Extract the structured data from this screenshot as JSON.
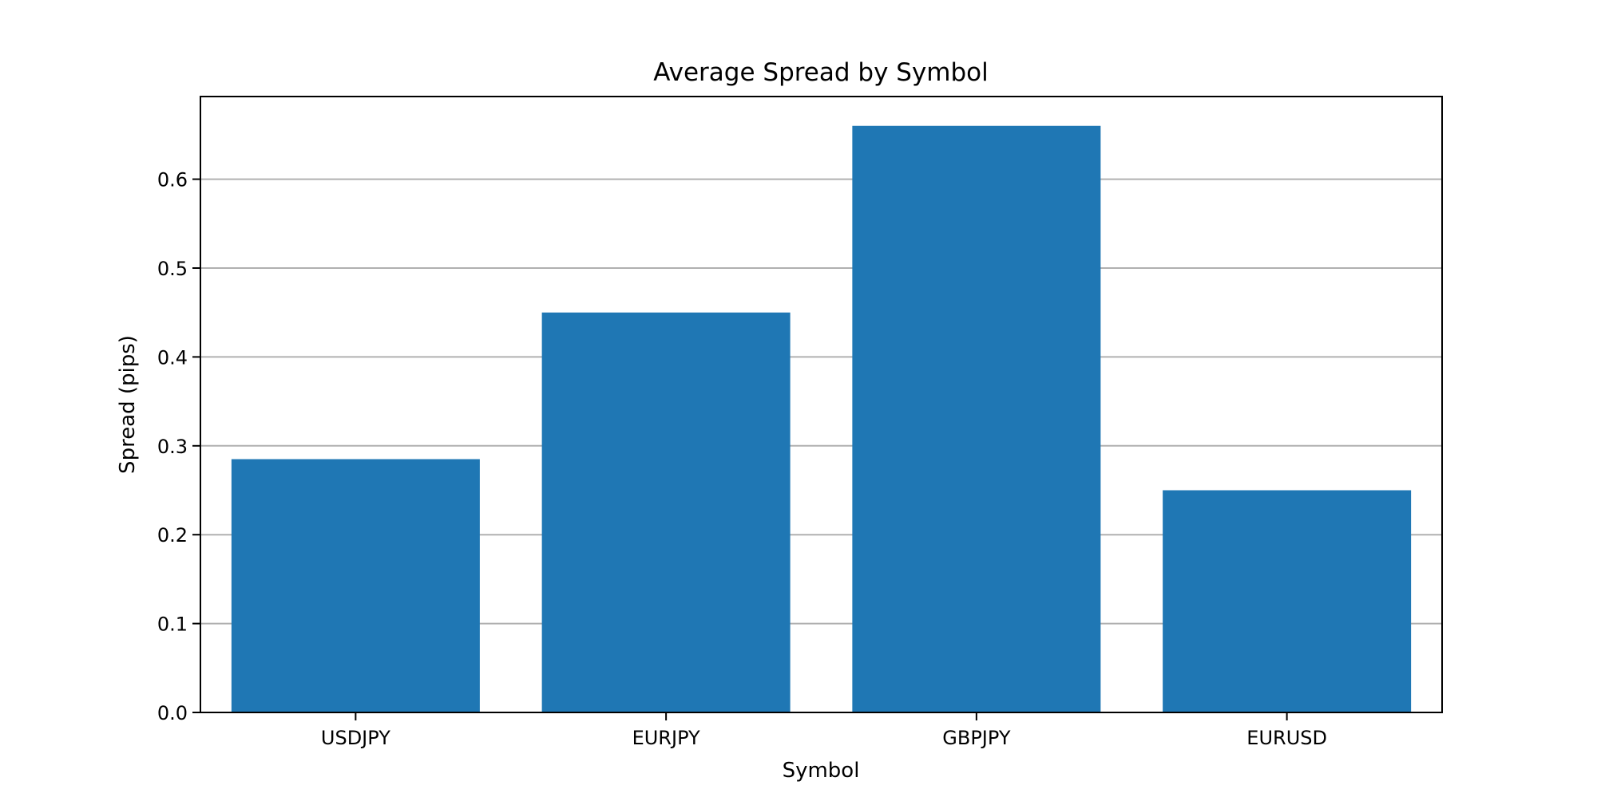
{
  "chart_data": {
    "type": "bar",
    "title": "Average Spread by Symbol",
    "xlabel": "Symbol",
    "ylabel": "Spread (pips)",
    "categories": [
      "USDJPY",
      "EURJPY",
      "GBPJPY",
      "EURUSD"
    ],
    "values": [
      0.285,
      0.45,
      0.66,
      0.25
    ],
    "ylim": [
      0,
      0.693
    ],
    "yticks": [
      0.0,
      0.1,
      0.2,
      0.3,
      0.4,
      0.5,
      0.6
    ],
    "ytick_labels": [
      "0.0",
      "0.1",
      "0.2",
      "0.3",
      "0.4",
      "0.5",
      "0.6"
    ],
    "grid": {
      "y": true,
      "x": false
    },
    "legend": "none",
    "colors": {
      "bar": "#1f77b4",
      "grid": "#b0b0b0",
      "axis": "#000000",
      "background": "#ffffff"
    }
  }
}
